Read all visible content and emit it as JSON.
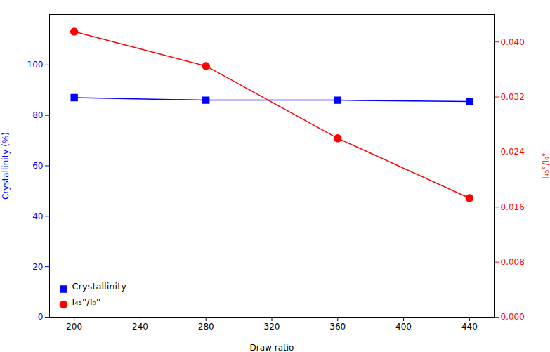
{
  "chart_data": {
    "type": "line",
    "xlabel": "Draw ratio",
    "ylabel": "Crystallinity (%)",
    "y2label": "I₄₅°/I₀°",
    "x": [
      200,
      280,
      360,
      440
    ],
    "series": [
      {
        "name": "Crystallinity",
        "color": "#0000FF",
        "marker": "square",
        "values": [
          87.0,
          86.0,
          86.0,
          85.5
        ]
      },
      {
        "name": "I₄₅°/I₀°",
        "color": "#FF0000",
        "marker": "circle",
        "axis": "y2",
        "values": [
          0.0415,
          0.0365,
          0.026,
          0.0173
        ]
      }
    ],
    "xlim": [
      185,
      455
    ],
    "xticks": [
      200,
      240,
      280,
      320,
      360,
      400,
      440
    ],
    "ylim": [
      0,
      120
    ],
    "yticks": [
      0,
      20,
      40,
      60,
      80,
      100
    ],
    "y2lim": [
      0.0,
      0.044
    ],
    "y2ticks": [
      {
        "value": 0.0,
        "label": "0.000"
      },
      {
        "value": 0.008,
        "label": "0.008"
      },
      {
        "value": 0.016,
        "label": "0.016"
      },
      {
        "value": 0.024,
        "label": "0.024"
      },
      {
        "value": 0.032,
        "label": "0.032"
      },
      {
        "value": 0.04,
        "label": "0.040"
      }
    ],
    "legend": "lower left",
    "grid": false
  }
}
